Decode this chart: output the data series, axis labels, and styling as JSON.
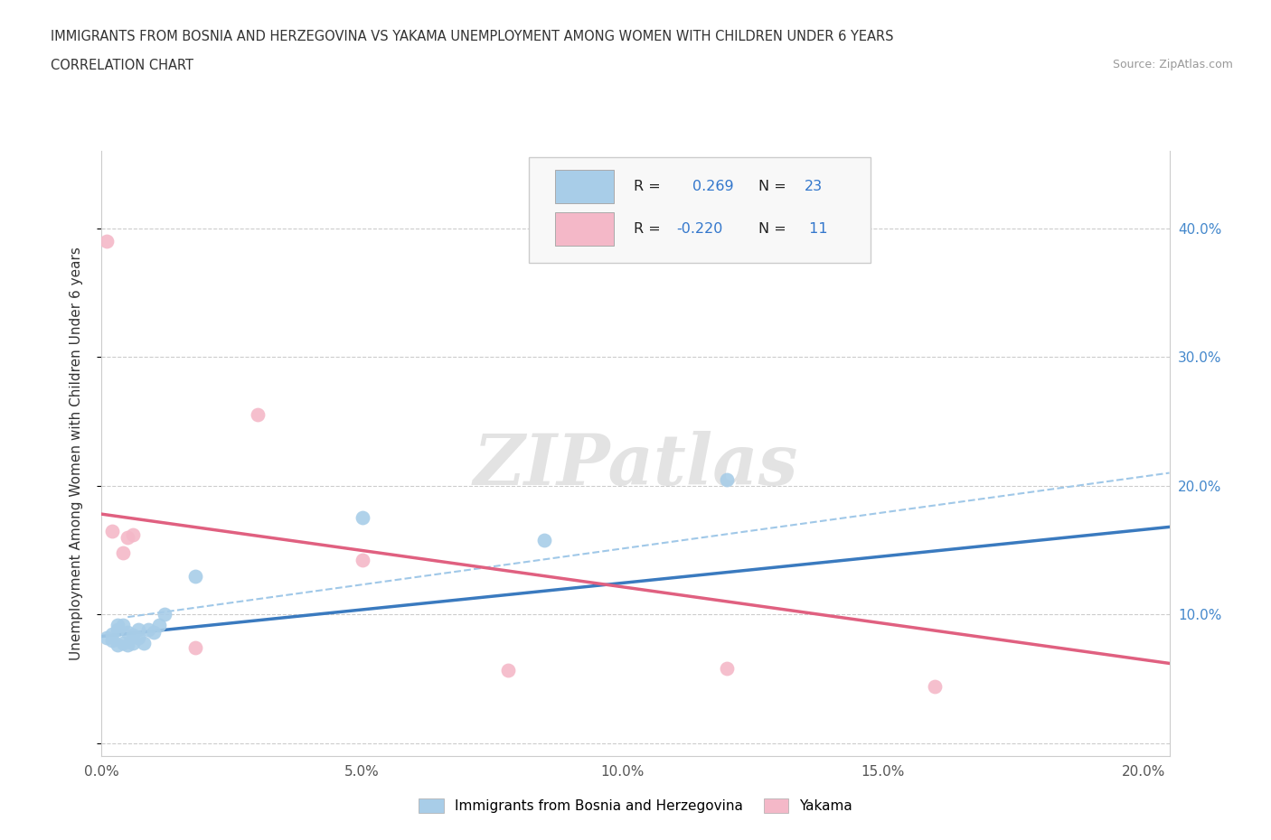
{
  "title_line1": "IMMIGRANTS FROM BOSNIA AND HERZEGOVINA VS YAKAMA UNEMPLOYMENT AMONG WOMEN WITH CHILDREN UNDER 6 YEARS",
  "title_line2": "CORRELATION CHART",
  "source": "Source: ZipAtlas.com",
  "ylabel": "Unemployment Among Women with Children Under 6 years",
  "xlim": [
    0.0,
    0.205
  ],
  "ylim": [
    -0.01,
    0.46
  ],
  "xticks": [
    0.0,
    0.05,
    0.1,
    0.15,
    0.2
  ],
  "xtick_labels": [
    "0.0%",
    "5.0%",
    "10.0%",
    "15.0%",
    "20.0%"
  ],
  "yticks": [
    0.0,
    0.1,
    0.2,
    0.3,
    0.4
  ],
  "blue_scatter_x": [
    0.001,
    0.002,
    0.002,
    0.003,
    0.003,
    0.003,
    0.004,
    0.004,
    0.005,
    0.005,
    0.006,
    0.006,
    0.007,
    0.007,
    0.008,
    0.009,
    0.01,
    0.011,
    0.012,
    0.018,
    0.05,
    0.085,
    0.12
  ],
  "blue_scatter_y": [
    0.082,
    0.08,
    0.085,
    0.076,
    0.088,
    0.092,
    0.078,
    0.092,
    0.076,
    0.086,
    0.078,
    0.084,
    0.082,
    0.088,
    0.078,
    0.088,
    0.086,
    0.092,
    0.1,
    0.13,
    0.175,
    0.158,
    0.205
  ],
  "pink_scatter_x": [
    0.001,
    0.002,
    0.004,
    0.005,
    0.006,
    0.018,
    0.03,
    0.05,
    0.078,
    0.12,
    0.16
  ],
  "pink_scatter_y": [
    0.39,
    0.165,
    0.148,
    0.16,
    0.162,
    0.074,
    0.255,
    0.142,
    0.057,
    0.058,
    0.044
  ],
  "blue_line_x": [
    0.0,
    0.205
  ],
  "blue_line_y": [
    0.083,
    0.168
  ],
  "pink_line_x": [
    0.0,
    0.205
  ],
  "pink_line_y": [
    0.178,
    0.062
  ],
  "blue_dashed_line_x": [
    0.005,
    0.205
  ],
  "blue_dashed_line_y": [
    0.098,
    0.21
  ],
  "scatter_size": 130,
  "blue_color": "#a8cde8",
  "pink_color": "#f4b8c8",
  "blue_line_color": "#3a7abf",
  "pink_line_color": "#e06080",
  "blue_dashed_color": "#a0c8e8",
  "legend_label1": "Immigrants from Bosnia and Herzegovina",
  "legend_label2": "Yakama",
  "watermark": "ZIPatlas",
  "background_color": "#ffffff",
  "grid_color": "#cccccc"
}
